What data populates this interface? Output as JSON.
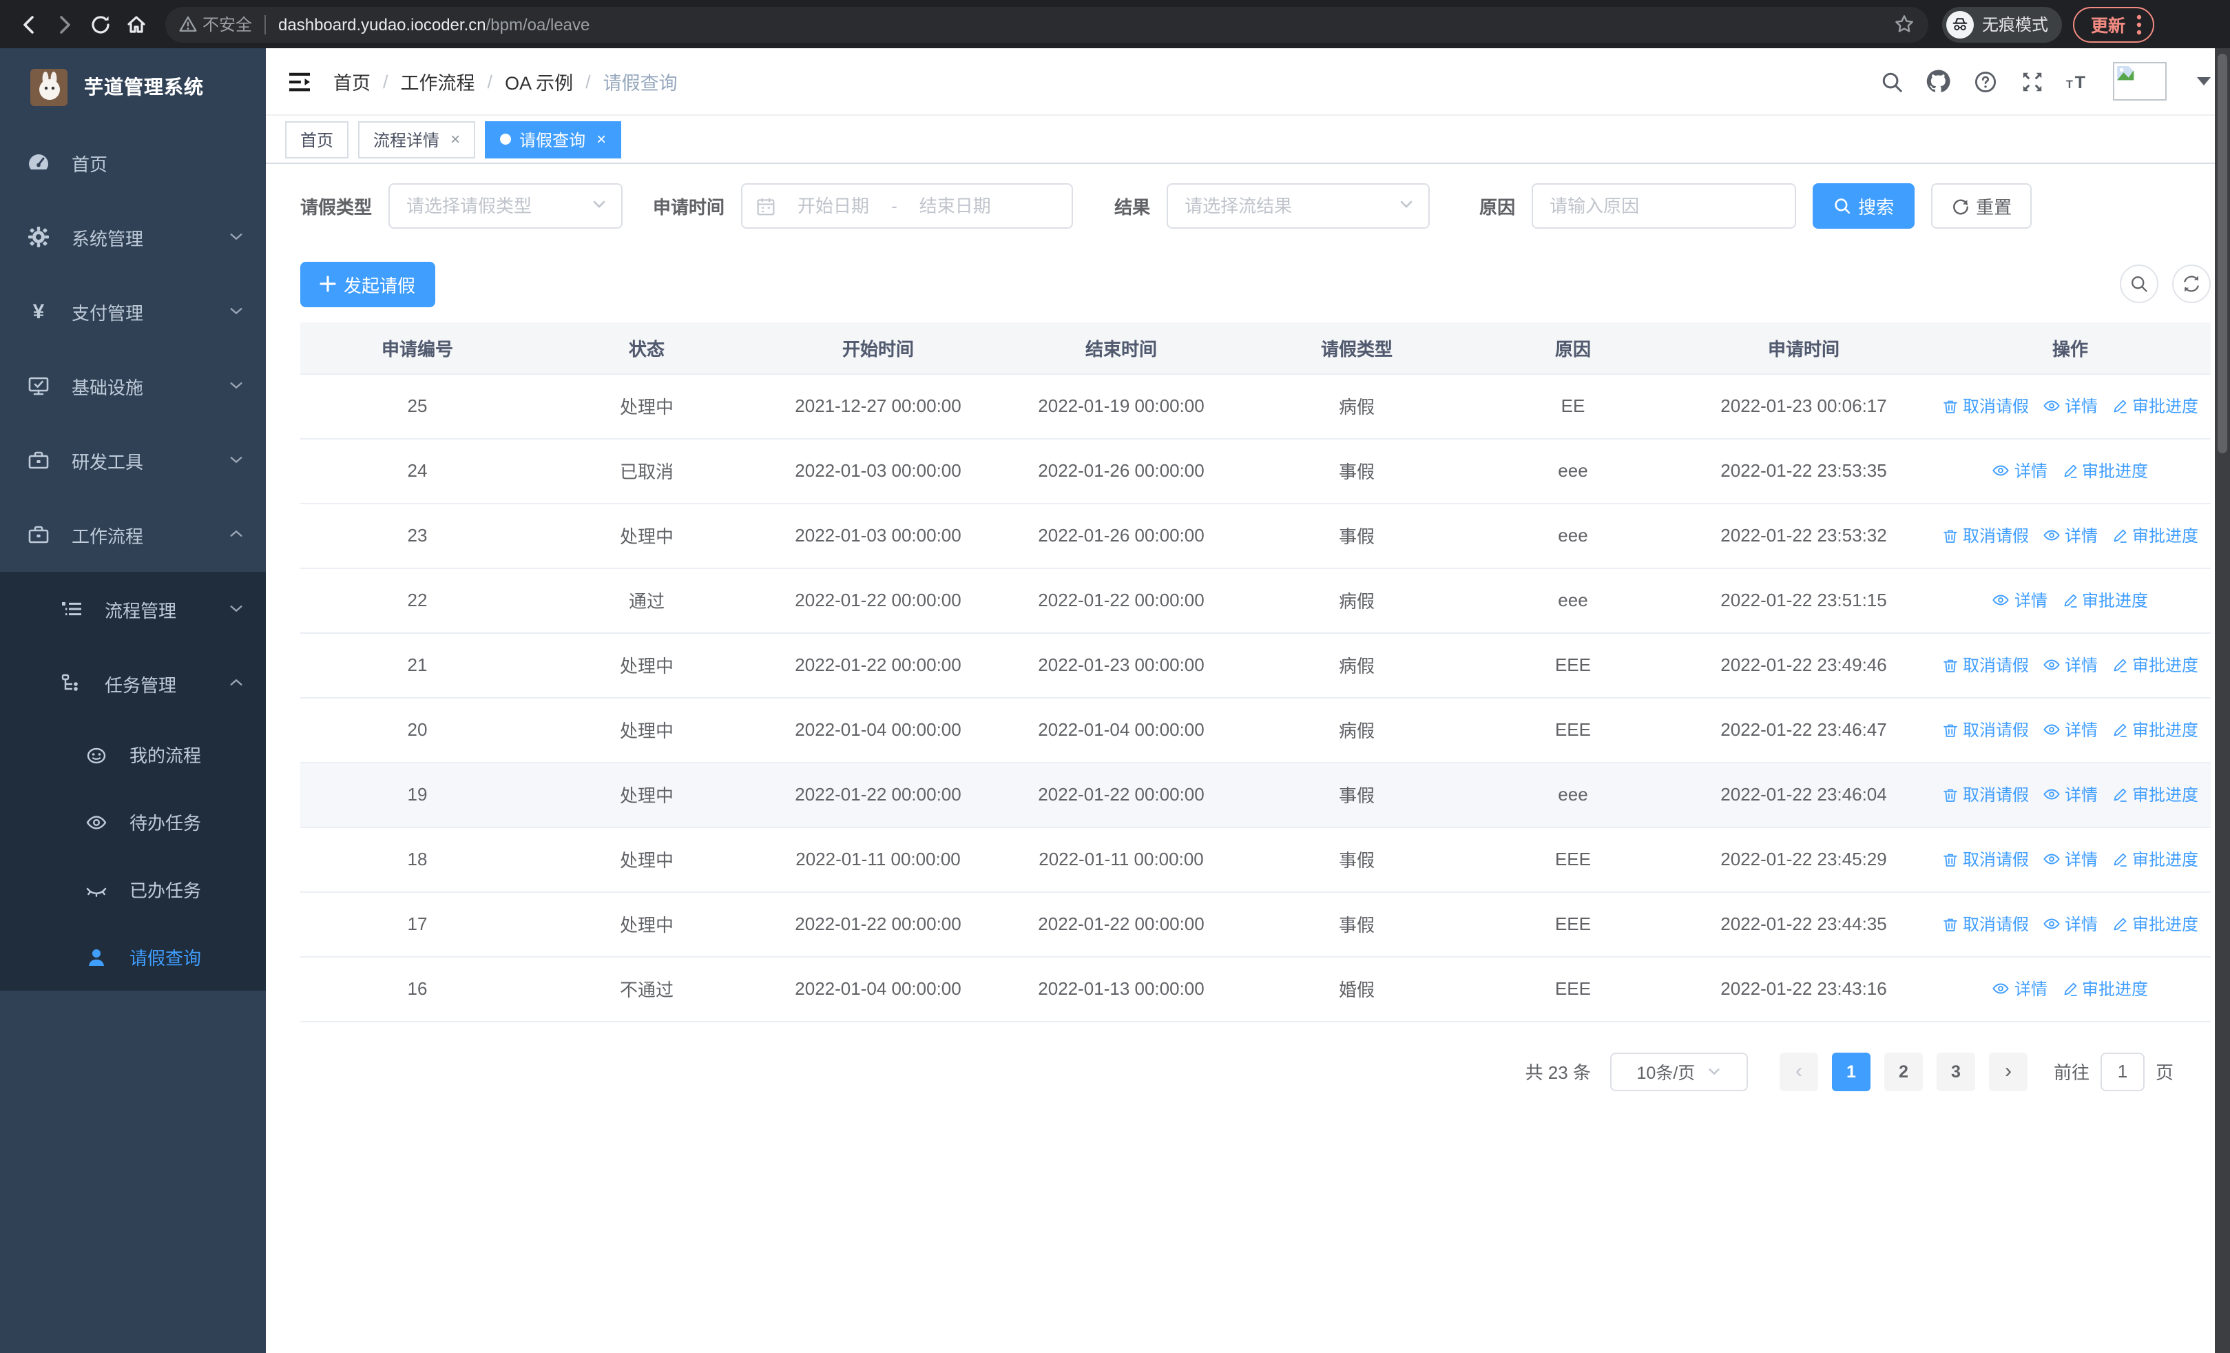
{
  "browser": {
    "security_label": "不安全",
    "url_host": "dashboard.yudao.iocoder.cn",
    "url_path": "/bpm/oa/leave",
    "incognito_label": "无痕模式",
    "update_label": "更新"
  },
  "sidebar": {
    "logo_title": "芋道管理系统",
    "items": [
      {
        "label": "首页",
        "icon": "dashboard-icon"
      },
      {
        "label": "系统管理",
        "icon": "gear-icon"
      },
      {
        "label": "支付管理",
        "icon": "yen-icon"
      },
      {
        "label": "基础设施",
        "icon": "monitor-icon"
      },
      {
        "label": "研发工具",
        "icon": "toolbox-icon"
      },
      {
        "label": "工作流程",
        "icon": "briefcase-icon"
      },
      {
        "label": "流程管理",
        "icon": "flow-list-icon"
      },
      {
        "label": "任务管理",
        "icon": "tree-icon"
      },
      {
        "label": "我的流程",
        "icon": "face-icon"
      },
      {
        "label": "待办任务",
        "icon": "eye-open-icon"
      },
      {
        "label": "已办任务",
        "icon": "eye-closed-icon"
      },
      {
        "label": "请假查询",
        "icon": "user-icon"
      }
    ]
  },
  "header": {
    "breadcrumb": [
      "首页",
      "工作流程",
      "OA 示例",
      "请假查询"
    ]
  },
  "tabs": [
    {
      "label": "首页"
    },
    {
      "label": "流程详情"
    },
    {
      "label": "请假查询"
    }
  ],
  "filters": {
    "leave_type_label": "请假类型",
    "leave_type_placeholder": "请选择请假类型",
    "apply_time_label": "申请时间",
    "start_date_placeholder": "开始日期",
    "range_separator": "-",
    "end_date_placeholder": "结束日期",
    "result_label": "结果",
    "result_placeholder": "请选择流结果",
    "reason_label": "原因",
    "reason_placeholder": "请输入原因",
    "search_label": "搜索",
    "reset_label": "重置"
  },
  "toolbar": {
    "create_label": "发起请假"
  },
  "table": {
    "columns": [
      "申请编号",
      "状态",
      "开始时间",
      "结束时间",
      "请假类型",
      "原因",
      "申请时间",
      "操作"
    ],
    "action_labels": {
      "cancel": "取消请假",
      "detail": "详情",
      "progress": "审批进度"
    },
    "rows": [
      {
        "id": "25",
        "status": "处理中",
        "start": "2021-12-27 00:00:00",
        "end": "2022-01-19 00:00:00",
        "type": "病假",
        "reason": "EE",
        "applied": "2022-01-23 00:06:17",
        "can_cancel": true,
        "highlighted": false
      },
      {
        "id": "24",
        "status": "已取消",
        "start": "2022-01-03 00:00:00",
        "end": "2022-01-26 00:00:00",
        "type": "事假",
        "reason": "eee",
        "applied": "2022-01-22 23:53:35",
        "can_cancel": false,
        "highlighted": false
      },
      {
        "id": "23",
        "status": "处理中",
        "start": "2022-01-03 00:00:00",
        "end": "2022-01-26 00:00:00",
        "type": "事假",
        "reason": "eee",
        "applied": "2022-01-22 23:53:32",
        "can_cancel": true,
        "highlighted": false
      },
      {
        "id": "22",
        "status": "通过",
        "start": "2022-01-22 00:00:00",
        "end": "2022-01-22 00:00:00",
        "type": "病假",
        "reason": "eee",
        "applied": "2022-01-22 23:51:15",
        "can_cancel": false,
        "highlighted": false
      },
      {
        "id": "21",
        "status": "处理中",
        "start": "2022-01-22 00:00:00",
        "end": "2022-01-23 00:00:00",
        "type": "病假",
        "reason": "EEE",
        "applied": "2022-01-22 23:49:46",
        "can_cancel": true,
        "highlighted": false
      },
      {
        "id": "20",
        "status": "处理中",
        "start": "2022-01-04 00:00:00",
        "end": "2022-01-04 00:00:00",
        "type": "病假",
        "reason": "EEE",
        "applied": "2022-01-22 23:46:47",
        "can_cancel": true,
        "highlighted": false
      },
      {
        "id": "19",
        "status": "处理中",
        "start": "2022-01-22 00:00:00",
        "end": "2022-01-22 00:00:00",
        "type": "事假",
        "reason": "eee",
        "applied": "2022-01-22 23:46:04",
        "can_cancel": true,
        "highlighted": true
      },
      {
        "id": "18",
        "status": "处理中",
        "start": "2022-01-11 00:00:00",
        "end": "2022-01-11 00:00:00",
        "type": "事假",
        "reason": "EEE",
        "applied": "2022-01-22 23:45:29",
        "can_cancel": true,
        "highlighted": false
      },
      {
        "id": "17",
        "status": "处理中",
        "start": "2022-01-22 00:00:00",
        "end": "2022-01-22 00:00:00",
        "type": "事假",
        "reason": "EEE",
        "applied": "2022-01-22 23:44:35",
        "can_cancel": true,
        "highlighted": false
      },
      {
        "id": "16",
        "status": "不通过",
        "start": "2022-01-04 00:00:00",
        "end": "2022-01-13 00:00:00",
        "type": "婚假",
        "reason": "EEE",
        "applied": "2022-01-22 23:43:16",
        "can_cancel": false,
        "highlighted": false
      }
    ]
  },
  "pagination": {
    "total_label": "共 23 条",
    "page_size_label": "10条/页",
    "pages": [
      "1",
      "2",
      "3"
    ],
    "active_page": "1",
    "goto_label": "前往",
    "goto_value": "1",
    "page_suffix": "页"
  },
  "colors": {
    "accent": "#409eff",
    "sidebar_bg": "#304156",
    "submenu_bg": "#1f2d3d",
    "sidebar_text": "#bfcbd9",
    "chrome_bg": "#202124",
    "update_pill": "#f28b82",
    "table_header_bg": "#f5f6f8",
    "row_highlight": "#f5f7fa"
  }
}
